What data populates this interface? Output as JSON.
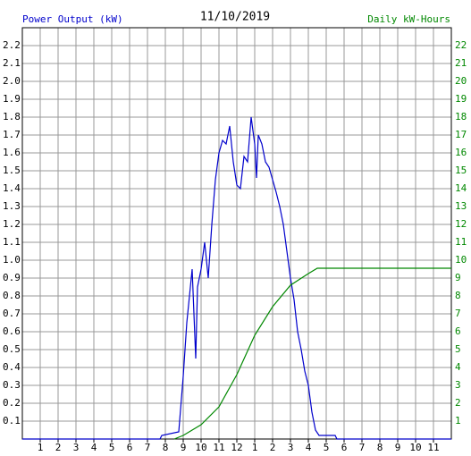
{
  "chart_data": {
    "type": "line",
    "title": "11/10/2019",
    "y_label": "Power Output (kW)",
    "y2_label": "Daily kW-Hours",
    "xlim": [
      0,
      24
    ],
    "xticks": [
      1,
      2,
      3,
      4,
      5,
      6,
      7,
      8,
      9,
      10,
      11,
      12,
      {
        "value": 13,
        "label": "1"
      },
      {
        "value": 14,
        "label": "2"
      },
      {
        "value": 15,
        "label": "3"
      },
      {
        "value": 16,
        "label": "4"
      },
      {
        "value": 17,
        "label": "5"
      },
      {
        "value": 18,
        "label": "6"
      },
      {
        "value": 19,
        "label": "7"
      },
      {
        "value": 20,
        "label": "8"
      },
      {
        "value": 21,
        "label": "9"
      },
      {
        "value": 22,
        "label": "10"
      },
      {
        "value": 23,
        "label": "11"
      }
    ],
    "ylim": [
      0,
      2.3
    ],
    "yticks": [
      0.1,
      0.2,
      0.3,
      0.4,
      0.5,
      0.6,
      0.7,
      0.8,
      0.9,
      {
        "value": 1,
        "label": "1.0"
      },
      1.1,
      1.2,
      1.3,
      1.4,
      1.5,
      1.6,
      1.7,
      1.8,
      1.9,
      {
        "value": 2,
        "label": "2.0"
      },
      2.1,
      2.2
    ],
    "y2lim": [
      0,
      23
    ],
    "y2ticks": [
      1,
      2,
      3,
      4,
      5,
      6,
      7,
      8,
      9,
      10,
      11,
      12,
      13,
      14,
      15,
      16,
      17,
      18,
      19,
      20,
      21,
      22
    ],
    "grid": true,
    "series": [
      {
        "name": "Power Output (kW)",
        "color": "#0000cc",
        "x": [
          0,
          7.7,
          7.8,
          8.75,
          9,
          9.2,
          9.4,
          9.5,
          9.7,
          9.8,
          10,
          10.2,
          10.4,
          10.6,
          10.8,
          11,
          11.2,
          11.4,
          11.6,
          11.8,
          12,
          12.2,
          12.4,
          12.6,
          12.8,
          13,
          13.1,
          13.2,
          13.4,
          13.6,
          13.8,
          14,
          14.2,
          14.4,
          14.6,
          14.8,
          15,
          15.2,
          15.4,
          15.6,
          15.8,
          16,
          16.2,
          16.4,
          16.6,
          17.5,
          17.6,
          24
        ],
        "values": [
          0,
          0,
          0.02,
          0.04,
          0.35,
          0.65,
          0.85,
          0.95,
          0.45,
          0.85,
          0.95,
          1.1,
          0.9,
          1.2,
          1.45,
          1.6,
          1.67,
          1.65,
          1.75,
          1.55,
          1.42,
          1.4,
          1.58,
          1.55,
          1.8,
          1.65,
          1.46,
          1.7,
          1.65,
          1.55,
          1.52,
          1.45,
          1.38,
          1.3,
          1.2,
          1.05,
          0.9,
          0.78,
          0.6,
          0.5,
          0.38,
          0.3,
          0.15,
          0.05,
          0.02,
          0.02,
          0,
          0
        ]
      },
      {
        "name": "Daily kW-Hours",
        "color": "#008800",
        "axis": "y2",
        "x": [
          8.5,
          9,
          10,
          11,
          12,
          13,
          14,
          15,
          16,
          16.5,
          24
        ],
        "values": [
          0,
          0.2,
          0.8,
          1.8,
          3.6,
          5.8,
          7.4,
          8.6,
          9.25,
          9.55,
          9.55
        ]
      }
    ]
  }
}
